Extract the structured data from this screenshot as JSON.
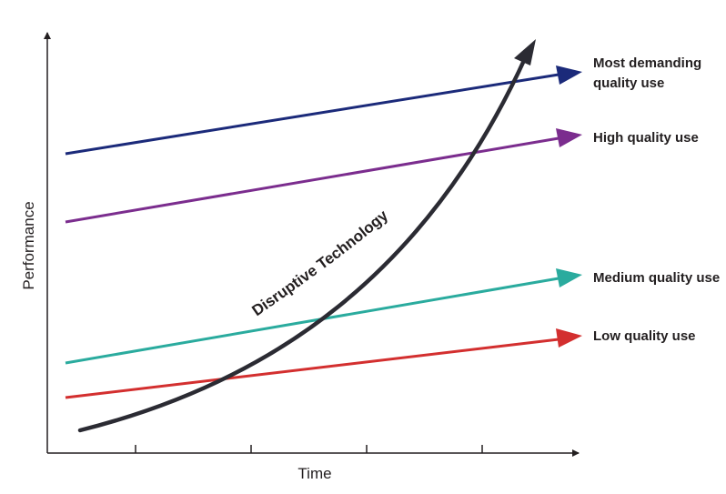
{
  "axes": {
    "x_title": "Time",
    "y_title": "Performance",
    "x_ticks": 4
  },
  "lines": [
    {
      "label_lines": [
        "Most demanding",
        "quality use"
      ],
      "color": "#1b2a7a"
    },
    {
      "label_lines": [
        "High quality use"
      ],
      "color": "#7b2d8e"
    },
    {
      "label_lines": [
        "Medium quality use"
      ],
      "color": "#2aab9e"
    },
    {
      "label_lines": [
        "Low quality use"
      ],
      "color": "#d32f2f"
    }
  ],
  "curve": {
    "label": "Disruptive Technology",
    "color": "#2b2b33"
  }
}
